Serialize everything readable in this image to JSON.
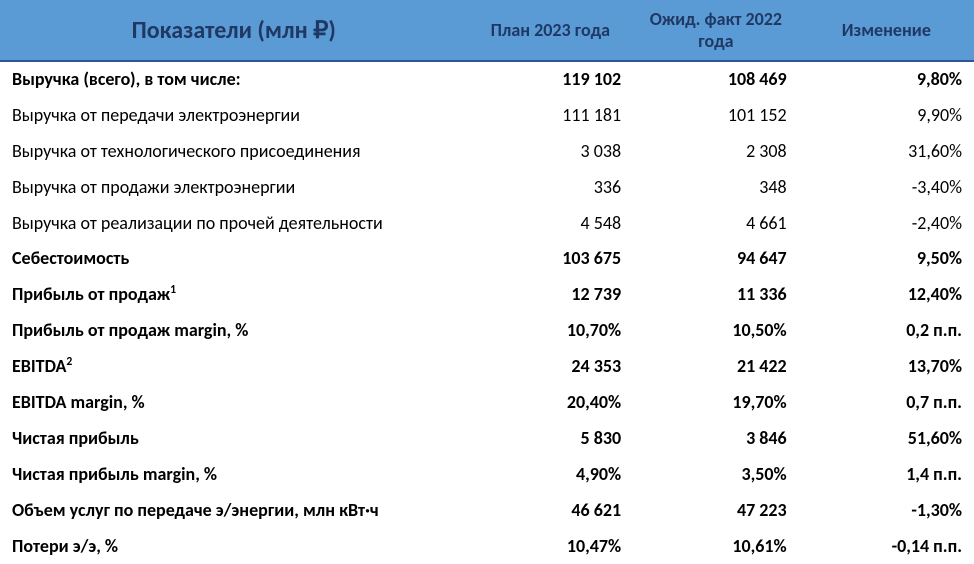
{
  "header": {
    "title": "Показатели (млн ₽)",
    "col_plan": "План 2023 года",
    "col_fact": "Ожид. факт 2022 года",
    "col_change": "Изменение",
    "bg_color": "#5b9bd5",
    "text_color": "#1f3864",
    "title_fontsize": 24,
    "col_fontsize": 18,
    "border_bottom_color": "#305496"
  },
  "rows": [
    {
      "label": "Выручка (всего), в том числе:",
      "plan": "119 102",
      "fact": "108 469",
      "change": "9,80%",
      "bold": true,
      "sup": ""
    },
    {
      "label": "Выручка от передачи электроэнергии",
      "plan": "111 181",
      "fact": "101 152",
      "change": "9,90%",
      "bold": false,
      "sup": ""
    },
    {
      "label": "Выручка от технологического присоединения",
      "plan": "3 038",
      "fact": "2 308",
      "change": "31,60%",
      "bold": false,
      "sup": ""
    },
    {
      "label": "Выручка от продажи электроэнергии",
      "plan": "336",
      "fact": "348",
      "change": "-3,40%",
      "bold": false,
      "sup": ""
    },
    {
      "label": "Выручка от реализации по прочей деятельности",
      "plan": "4 548",
      "fact": "4 661",
      "change": "-2,40%",
      "bold": false,
      "sup": ""
    },
    {
      "label": "Себестоимость",
      "plan": "103 675",
      "fact": "94 647",
      "change": "9,50%",
      "bold": true,
      "sup": ""
    },
    {
      "label": "Прибыль от продаж",
      "plan": "12 739",
      "fact": "11 336",
      "change": "12,40%",
      "bold": true,
      "sup": "1"
    },
    {
      "label": "Прибыль от продаж margin, %",
      "plan": "10,70%",
      "fact": "10,50%",
      "change": "0,2 п.п.",
      "bold": true,
      "sup": ""
    },
    {
      "label": "EBITDA",
      "plan": "24 353",
      "fact": "21 422",
      "change": "13,70%",
      "bold": true,
      "sup": "2"
    },
    {
      "label": "EBITDA margin, %",
      "plan": "20,40%",
      "fact": "19,70%",
      "change": "0,7 п.п.",
      "bold": true,
      "sup": ""
    },
    {
      "label": "Чистая прибыль",
      "plan": "5 830",
      "fact": "3 846",
      "change": "51,60%",
      "bold": true,
      "sup": ""
    },
    {
      "label": "Чистая прибыль margin, %",
      "plan": "4,90%",
      "fact": "3,50%",
      "change": "1,4 п.п.",
      "bold": true,
      "sup": ""
    },
    {
      "label": "Объем услуг по передаче э/энергии, млн кВт·ч",
      "plan": "46 621",
      "fact": "47 223",
      "change": "-1,30%",
      "bold": true,
      "sup": ""
    },
    {
      "label": "Потери э/э, %",
      "plan": "10,47%",
      "fact": "10,61%",
      "change": "-0,14 п.п.",
      "bold": true,
      "sup": ""
    }
  ],
  "styling": {
    "body_fontsize": 18,
    "row_line_height": 1.55,
    "text_color": "#000000",
    "background_color": "#ffffff",
    "col_widths_pct": [
      48,
      17,
      17,
      18
    ]
  }
}
